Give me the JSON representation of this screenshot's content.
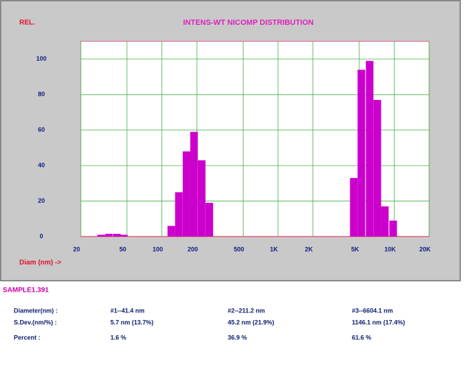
{
  "chart_data": {
    "type": "bar",
    "title": "INTENS-WT NICOMP DISTRIBUTION",
    "y_label": "REL.",
    "x_label": "Diam (nm) ->",
    "x": [
      30,
      35,
      41,
      47,
      120.5,
      140,
      163,
      189,
      220,
      256,
      4490,
      5220,
      6150,
      7160,
      8310,
      9800
    ],
    "values": [
      1,
      1.5,
      1.5,
      1,
      6,
      25,
      48,
      59,
      43,
      19,
      33,
      94,
      99,
      77,
      17,
      9
    ],
    "color": "#cc00cc",
    "log_x": true,
    "grid": true,
    "xlim": [
      20,
      20000
    ],
    "xticks": [
      20,
      50,
      100,
      200,
      500,
      {
        "value": 1000,
        "label": "1K"
      },
      {
        "value": 2000,
        "label": "2K"
      },
      {
        "value": 5000,
        "label": "5K"
      },
      {
        "value": 10000,
        "label": "10K"
      },
      {
        "value": 20000,
        "label": "20K"
      }
    ],
    "ylim": [
      0,
      110
    ],
    "yticks": [
      0,
      20,
      40,
      60,
      80,
      100
    ]
  },
  "results": {
    "sample": "SAMPLE1.391",
    "rows": [
      [
        "Diameter(nm) :",
        "#1--41.4 nm",
        "#2--211.2 nm",
        "#3--6604.1 nm"
      ],
      [
        "S.Dev.(nm/%) :",
        "5.7 nm (13.7%)",
        "45.2 nm (21.9%)",
        "1146.1 nm (17.4%)"
      ],
      [
        "Percent    :",
        "1.6 %",
        "36.9 %",
        "61.6 %"
      ]
    ]
  }
}
